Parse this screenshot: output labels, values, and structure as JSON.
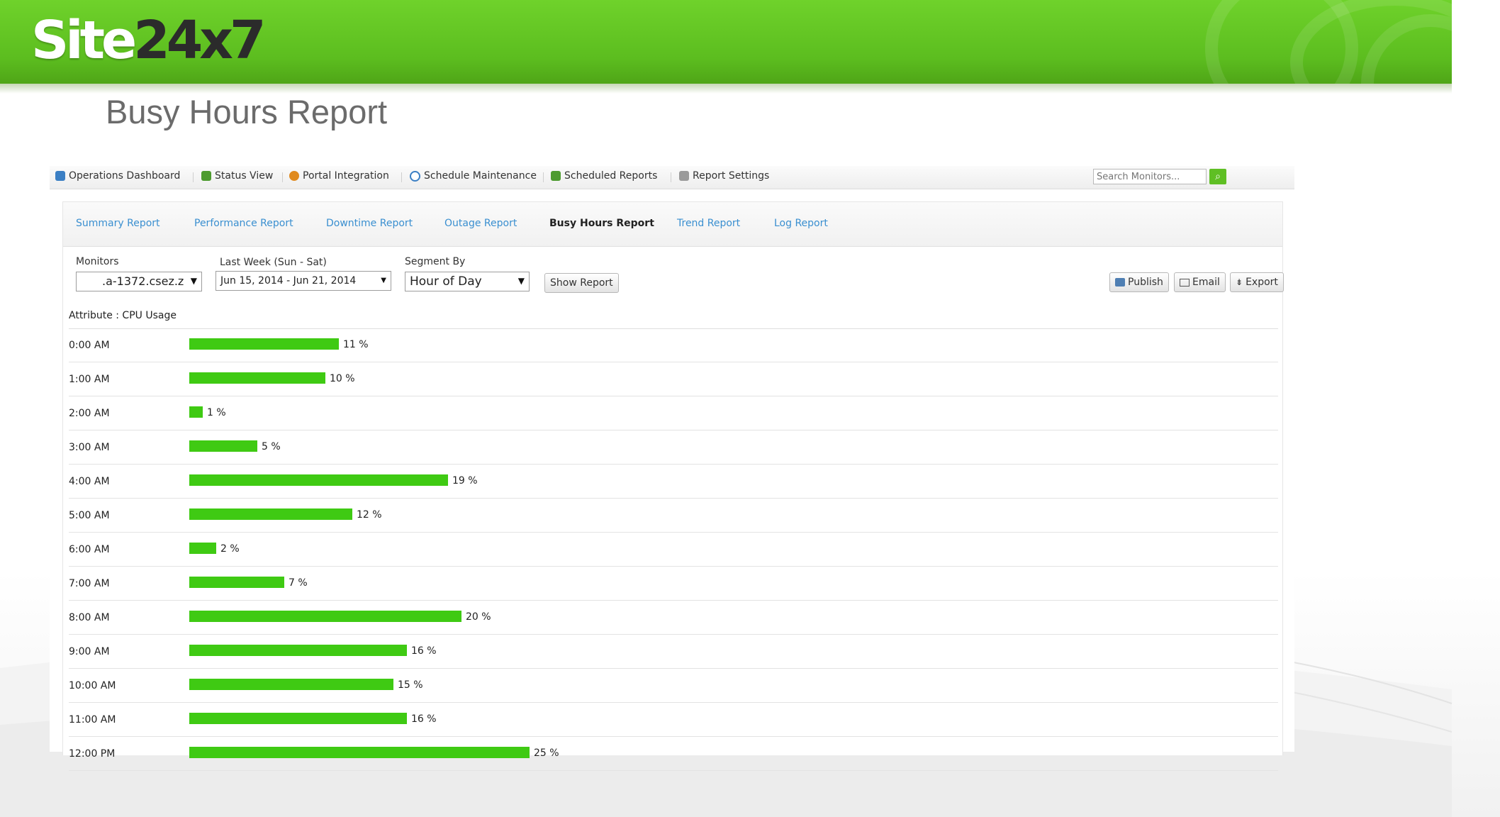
{
  "logo": {
    "white_part": "Site",
    "dark_part": "24x7"
  },
  "slide_title": "Busy Hours Report",
  "top_nav": {
    "items": [
      {
        "label": "Operations Dashboard",
        "icon": "dashboard-icon",
        "color": "#3b7fc4"
      },
      {
        "label": "Status View",
        "icon": "status-view-icon",
        "color": "#4d9b2f"
      },
      {
        "label": "Portal Integration",
        "icon": "portal-icon",
        "color": "#e08a1e"
      },
      {
        "label": "Schedule Maintenance",
        "icon": "clock-icon",
        "color": "#3b7fc4"
      },
      {
        "label": "Scheduled Reports",
        "icon": "report-icon",
        "color": "#4d9b2f"
      },
      {
        "label": "Report Settings",
        "icon": "settings-icon",
        "color": "#9a9a9a"
      }
    ],
    "search_placeholder": "Search Monitors..."
  },
  "tabs": [
    {
      "label": "Summary Report",
      "active": false
    },
    {
      "label": "Performance Report",
      "active": false
    },
    {
      "label": "Downtime Report",
      "active": false
    },
    {
      "label": "Outage Report",
      "active": false
    },
    {
      "label": "Busy Hours Report",
      "active": true
    },
    {
      "label": "Trend Report",
      "active": false
    },
    {
      "label": "Log Report",
      "active": false
    }
  ],
  "filters": {
    "monitors_label": "Monitors",
    "monitors_value": ".a-1372.csez.z",
    "period_label": "Last Week (Sun - Sat)",
    "period_value": "Jun 15, 2014 - Jun 21, 2014",
    "segment_label": "Segment By",
    "segment_value": "Hour of Day",
    "show_report": "Show Report"
  },
  "actions": {
    "publish": "Publish",
    "email": "Email",
    "export": "Export"
  },
  "attribute_label": "Attribute : CPU Usage",
  "chart_data": {
    "type": "bar",
    "orientation": "horizontal",
    "categories": [
      "0:00 AM",
      "1:00 AM",
      "2:00 AM",
      "3:00 AM",
      "4:00 AM",
      "5:00 AM",
      "6:00 AM",
      "7:00 AM",
      "8:00 AM",
      "9:00 AM",
      "10:00 AM",
      "11:00 AM",
      "12:00 PM"
    ],
    "values": [
      11,
      10,
      1,
      5,
      19,
      12,
      2,
      7,
      20,
      16,
      15,
      16,
      25
    ],
    "unit": "%",
    "bar_color": "#3fca13"
  }
}
